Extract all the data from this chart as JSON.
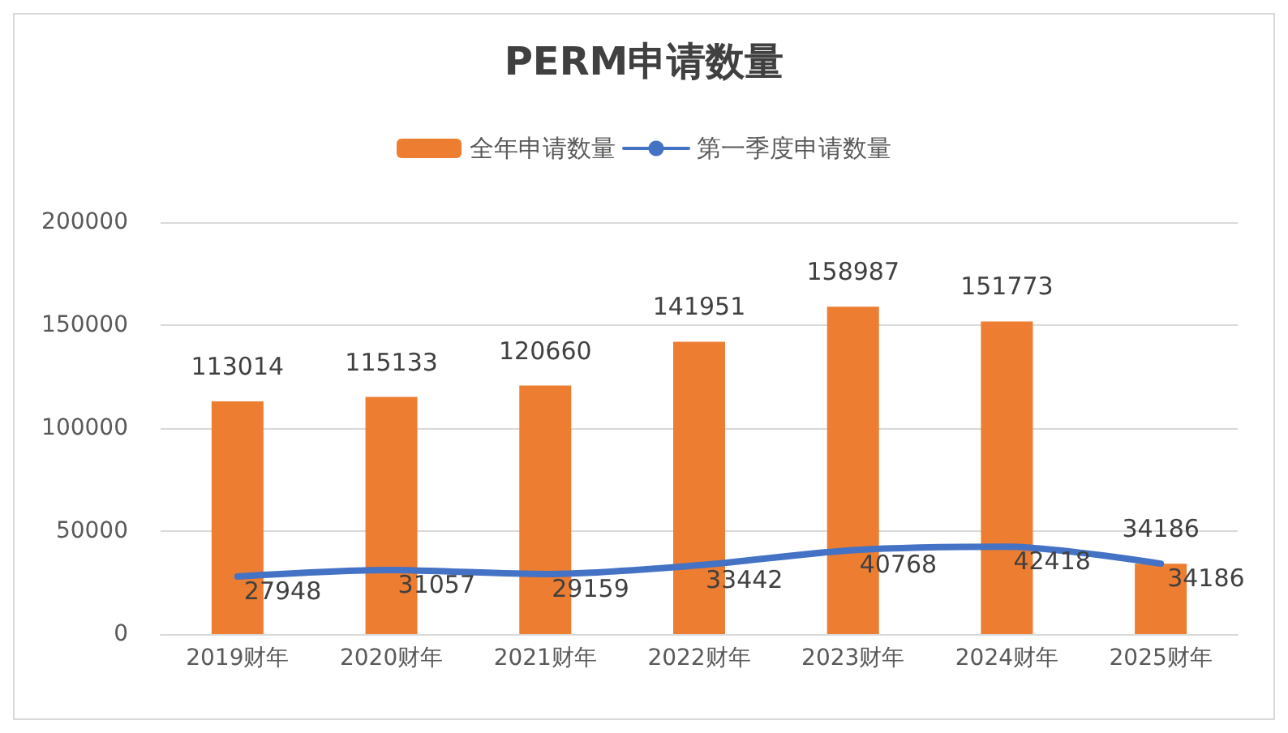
{
  "chart_data": {
    "type": "bar",
    "title": "PERM申请数量",
    "categories": [
      "2019财年",
      "2020财年",
      "2021财年",
      "2022财年",
      "2023财年",
      "2024财年",
      "2025财年"
    ],
    "series": [
      {
        "name": "全年申请数量",
        "color": "#ed7d31",
        "values": [
          113014,
          115133,
          120660,
          141951,
          158987,
          151773,
          34186
        ]
      },
      {
        "name": "第一季度申请数量",
        "type": "line",
        "color": "#4472c4",
        "values": [
          27948,
          31057,
          29159,
          33442,
          40768,
          42418,
          34186
        ]
      }
    ],
    "ylim": [
      0,
      200000
    ],
    "yticks": [
      0,
      50000,
      100000,
      150000,
      200000
    ],
    "grid": "y",
    "legend": "top",
    "data_labels": true,
    "marker": "none",
    "line_style": "solid"
  }
}
